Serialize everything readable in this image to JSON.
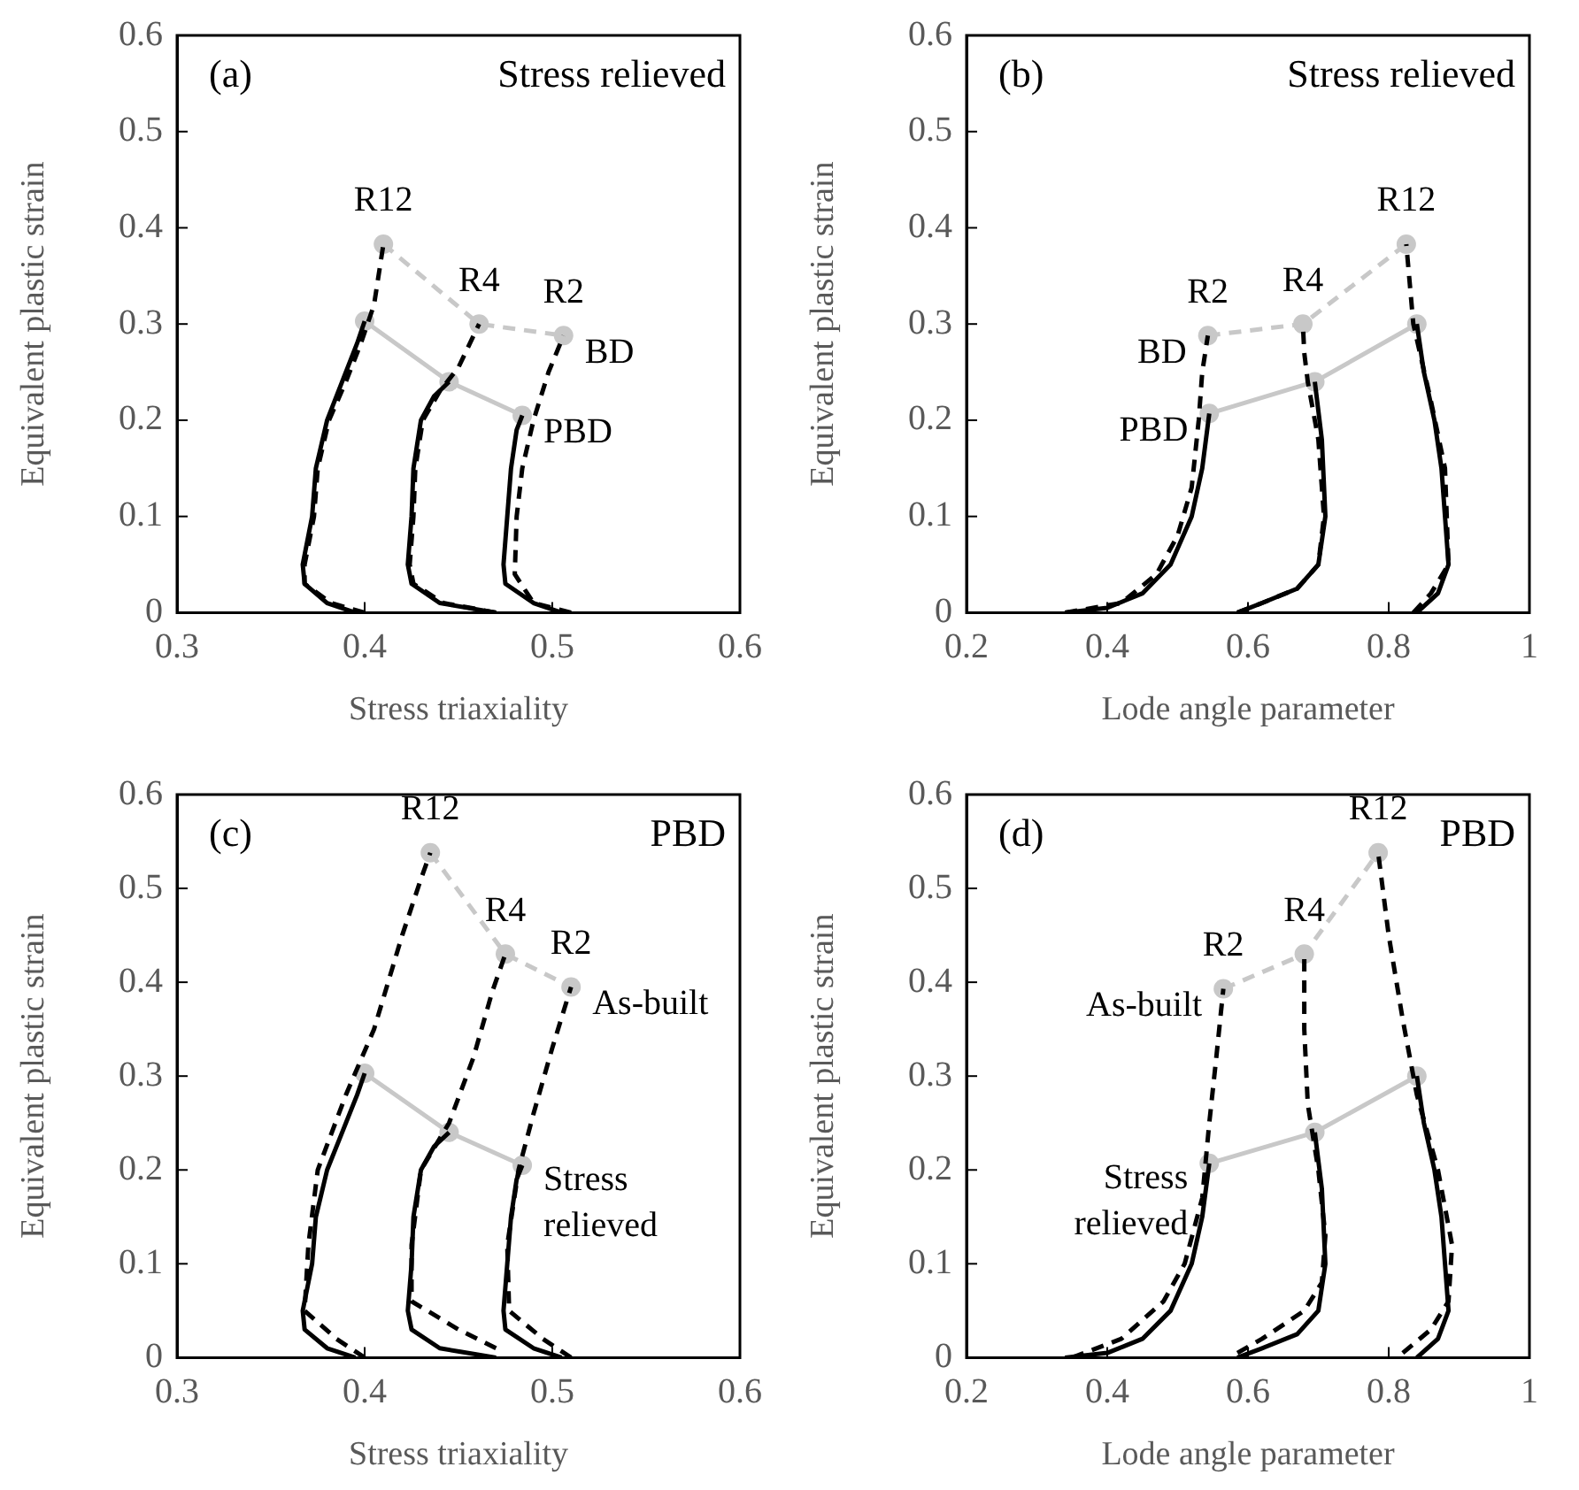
{
  "chart_data": [
    {
      "type": "line",
      "title": "(a)",
      "subtitle": "Stress relieved",
      "xlabel": "Stress triaxiality",
      "ylabel": "Equivalent plastic strain",
      "xlim": [
        0.3,
        0.6
      ],
      "xticks": [
        0.3,
        0.4,
        0.5,
        0.6
      ],
      "ylim": [
        0,
        0.6
      ],
      "yticks": [
        0,
        0.1,
        0.2,
        0.3,
        0.4,
        0.5,
        0.6
      ],
      "grid": false,
      "legend": false,
      "series": [
        {
          "color": "#000000",
          "line_style": "solid",
          "marker": "none",
          "x": [
            0.395,
            0.38,
            0.368,
            0.367,
            0.372,
            0.374,
            0.38,
            0.388,
            0.396,
            0.4
          ],
          "values": [
            0,
            0.01,
            0.03,
            0.05,
            0.1,
            0.15,
            0.2,
            0.24,
            0.28,
            0.303
          ]
        },
        {
          "color": "#000000",
          "line_style": "solid",
          "marker": "none",
          "x": [
            0.47,
            0.44,
            0.425,
            0.423,
            0.425,
            0.426,
            0.43,
            0.437,
            0.445
          ],
          "values": [
            0,
            0.01,
            0.03,
            0.05,
            0.1,
            0.15,
            0.2,
            0.225,
            0.24
          ]
        },
        {
          "color": "#000000",
          "line_style": "solid",
          "marker": "none",
          "x": [
            0.505,
            0.49,
            0.475,
            0.474,
            0.476,
            0.478,
            0.481,
            0.484
          ],
          "values": [
            0,
            0.01,
            0.03,
            0.05,
            0.1,
            0.15,
            0.19,
            0.205
          ]
        },
        {
          "color": "#000000",
          "line_style": "dashed",
          "marker": "none",
          "x": [
            0.4,
            0.382,
            0.368,
            0.368,
            0.373,
            0.375,
            0.381,
            0.39,
            0.398,
            0.405,
            0.41
          ],
          "values": [
            0,
            0.01,
            0.03,
            0.05,
            0.1,
            0.15,
            0.2,
            0.24,
            0.28,
            0.32,
            0.383
          ]
        },
        {
          "color": "#000000",
          "line_style": "dashed",
          "marker": "none",
          "x": [
            0.47,
            0.442,
            0.426,
            0.424,
            0.426,
            0.427,
            0.431,
            0.44,
            0.45,
            0.461
          ],
          "values": [
            0,
            0.01,
            0.03,
            0.05,
            0.1,
            0.15,
            0.2,
            0.23,
            0.255,
            0.3
          ]
        },
        {
          "color": "#000000",
          "line_style": "dashed",
          "marker": "none",
          "x": [
            0.51,
            0.49,
            0.48,
            0.481,
            0.484,
            0.49,
            0.498,
            0.506
          ],
          "values": [
            0,
            0.01,
            0.04,
            0.1,
            0.15,
            0.2,
            0.25,
            0.288
          ]
        },
        {
          "color": "#c8c8c8",
          "line_style": "solid",
          "marker": "circle",
          "x": [
            0.4,
            0.445,
            0.484
          ],
          "values": [
            0.303,
            0.24,
            0.205
          ]
        },
        {
          "color": "#c8c8c8",
          "line_style": "dashed",
          "marker": "circle",
          "x": [
            0.41,
            0.461,
            0.506
          ],
          "values": [
            0.383,
            0.3,
            0.288
          ]
        }
      ],
      "annotations": [
        {
          "text": "R12",
          "x": 0.41,
          "y": 0.383
        },
        {
          "text": "R4",
          "x": 0.461,
          "y": 0.3
        },
        {
          "text": "R2",
          "x": 0.506,
          "y": 0.288
        },
        {
          "text": "BD",
          "x": 0.506,
          "y": 0.288
        },
        {
          "text": "PBD",
          "x": 0.484,
          "y": 0.205
        }
      ]
    },
    {
      "type": "line",
      "title": "(b)",
      "subtitle": "Stress relieved",
      "xlabel": "Lode angle parameter",
      "ylabel": "Equivalent plastic strain",
      "xlim": [
        0.2,
        1
      ],
      "xticks": [
        0.2,
        0.4,
        0.6,
        0.8,
        1
      ],
      "ylim": [
        0,
        0.6
      ],
      "yticks": [
        0,
        0.1,
        0.2,
        0.3,
        0.4,
        0.5,
        0.6
      ],
      "grid": false,
      "legend": false,
      "series": [
        {
          "color": "#000000",
          "line_style": "solid",
          "marker": "none",
          "x": [
            0.34,
            0.4,
            0.45,
            0.49,
            0.52,
            0.535,
            0.545
          ],
          "values": [
            0,
            0.005,
            0.02,
            0.05,
            0.1,
            0.15,
            0.207
          ]
        },
        {
          "color": "#000000",
          "line_style": "solid",
          "marker": "none",
          "x": [
            0.585,
            0.62,
            0.67,
            0.7,
            0.71,
            0.705,
            0.695
          ],
          "values": [
            0,
            0.01,
            0.025,
            0.05,
            0.1,
            0.18,
            0.24
          ]
        },
        {
          "color": "#000000",
          "line_style": "solid",
          "marker": "none",
          "x": [
            0.84,
            0.87,
            0.885,
            0.88,
            0.875,
            0.865,
            0.85,
            0.84
          ],
          "values": [
            0,
            0.02,
            0.05,
            0.1,
            0.15,
            0.2,
            0.25,
            0.3
          ]
        },
        {
          "color": "#000000",
          "line_style": "dashed",
          "marker": "none",
          "x": [
            0.34,
            0.42,
            0.47,
            0.5,
            0.52,
            0.53,
            0.535,
            0.543
          ],
          "values": [
            0,
            0.01,
            0.04,
            0.08,
            0.13,
            0.2,
            0.25,
            0.288
          ]
        },
        {
          "color": "#000000",
          "line_style": "dashed",
          "marker": "none",
          "x": [
            0.585,
            0.62,
            0.67,
            0.7,
            0.708,
            0.7,
            0.685,
            0.68,
            0.678
          ],
          "values": [
            0,
            0.01,
            0.025,
            0.05,
            0.1,
            0.18,
            0.24,
            0.27,
            0.3
          ]
        },
        {
          "color": "#000000",
          "line_style": "dashed",
          "marker": "none",
          "x": [
            0.835,
            0.86,
            0.885,
            0.88,
            0.86,
            0.835,
            0.825
          ],
          "values": [
            0,
            0.02,
            0.05,
            0.15,
            0.22,
            0.3,
            0.383
          ]
        },
        {
          "color": "#c8c8c8",
          "line_style": "solid",
          "marker": "circle",
          "x": [
            0.545,
            0.695,
            0.84
          ],
          "values": [
            0.207,
            0.24,
            0.3
          ]
        },
        {
          "color": "#c8c8c8",
          "line_style": "dashed",
          "marker": "circle",
          "x": [
            0.543,
            0.678,
            0.825
          ],
          "values": [
            0.288,
            0.3,
            0.383
          ]
        }
      ],
      "annotations": [
        {
          "text": "R12",
          "x": 0.825,
          "y": 0.383
        },
        {
          "text": "R4",
          "x": 0.678,
          "y": 0.3
        },
        {
          "text": "R2",
          "x": 0.543,
          "y": 0.288
        },
        {
          "text": "BD",
          "x": 0.543,
          "y": 0.288
        },
        {
          "text": "PBD",
          "x": 0.545,
          "y": 0.207
        }
      ]
    },
    {
      "type": "line",
      "title": "(c)",
      "subtitle": "PBD",
      "xlabel": "Stress triaxiality",
      "ylabel": "Equivalent plastic strain",
      "xlim": [
        0.3,
        0.6
      ],
      "xticks": [
        0.3,
        0.4,
        0.5,
        0.6
      ],
      "ylim": [
        0,
        0.6
      ],
      "yticks": [
        0,
        0.1,
        0.2,
        0.3,
        0.4,
        0.5,
        0.6
      ],
      "grid": false,
      "legend": false,
      "series": [
        {
          "color": "#000000",
          "line_style": "solid",
          "marker": "none",
          "x": [
            0.395,
            0.38,
            0.368,
            0.367,
            0.372,
            0.374,
            0.38,
            0.388,
            0.396,
            0.4
          ],
          "values": [
            0,
            0.01,
            0.03,
            0.05,
            0.1,
            0.15,
            0.2,
            0.24,
            0.28,
            0.303
          ]
        },
        {
          "color": "#000000",
          "line_style": "solid",
          "marker": "none",
          "x": [
            0.47,
            0.44,
            0.425,
            0.423,
            0.425,
            0.426,
            0.43,
            0.437,
            0.445
          ],
          "values": [
            0,
            0.01,
            0.03,
            0.05,
            0.1,
            0.15,
            0.2,
            0.225,
            0.24
          ]
        },
        {
          "color": "#000000",
          "line_style": "solid",
          "marker": "none",
          "x": [
            0.505,
            0.49,
            0.475,
            0.474,
            0.476,
            0.478,
            0.481,
            0.484
          ],
          "values": [
            0,
            0.01,
            0.03,
            0.05,
            0.1,
            0.15,
            0.19,
            0.205
          ]
        },
        {
          "color": "#000000",
          "line_style": "dashed",
          "marker": "none",
          "x": [
            0.4,
            0.385,
            0.368,
            0.37,
            0.375,
            0.39,
            0.405,
            0.42,
            0.43,
            0.435
          ],
          "values": [
            0,
            0.02,
            0.05,
            0.12,
            0.2,
            0.28,
            0.35,
            0.45,
            0.51,
            0.538
          ]
        },
        {
          "color": "#000000",
          "line_style": "dashed",
          "marker": "none",
          "x": [
            0.47,
            0.45,
            0.425,
            0.425,
            0.43,
            0.445,
            0.458,
            0.468,
            0.475
          ],
          "values": [
            0.01,
            0.03,
            0.06,
            0.12,
            0.2,
            0.25,
            0.32,
            0.39,
            0.43
          ]
        },
        {
          "color": "#000000",
          "line_style": "dashed",
          "marker": "none",
          "x": [
            0.51,
            0.495,
            0.477,
            0.476,
            0.482,
            0.49,
            0.5,
            0.51
          ],
          "values": [
            0,
            0.02,
            0.05,
            0.12,
            0.2,
            0.26,
            0.33,
            0.395
          ]
        },
        {
          "color": "#c8c8c8",
          "line_style": "solid",
          "marker": "circle",
          "x": [
            0.4,
            0.445,
            0.484
          ],
          "values": [
            0.303,
            0.24,
            0.205
          ]
        },
        {
          "color": "#c8c8c8",
          "line_style": "dashed",
          "marker": "circle",
          "x": [
            0.435,
            0.475,
            0.51
          ],
          "values": [
            0.538,
            0.43,
            0.395
          ]
        }
      ],
      "annotations": [
        {
          "text": "R12",
          "x": 0.435,
          "y": 0.538
        },
        {
          "text": "R4",
          "x": 0.475,
          "y": 0.43
        },
        {
          "text": "R2",
          "x": 0.51,
          "y": 0.395
        },
        {
          "text": "As-built",
          "x": 0.51,
          "y": 0.395
        },
        {
          "text": "Stress relieved",
          "x": 0.484,
          "y": 0.205
        }
      ]
    },
    {
      "type": "line",
      "title": "(d)",
      "subtitle": "PBD",
      "xlabel": "Lode angle parameter",
      "ylabel": "Equivalent plastic strain",
      "xlim": [
        0.2,
        1
      ],
      "xticks": [
        0.2,
        0.4,
        0.6,
        0.8,
        1
      ],
      "ylim": [
        0,
        0.6
      ],
      "yticks": [
        0,
        0.1,
        0.2,
        0.3,
        0.4,
        0.5,
        0.6
      ],
      "grid": false,
      "legend": false,
      "series": [
        {
          "color": "#000000",
          "line_style": "solid",
          "marker": "none",
          "x": [
            0.34,
            0.4,
            0.45,
            0.49,
            0.52,
            0.535,
            0.545
          ],
          "values": [
            0,
            0.005,
            0.02,
            0.05,
            0.1,
            0.15,
            0.207
          ]
        },
        {
          "color": "#000000",
          "line_style": "solid",
          "marker": "none",
          "x": [
            0.585,
            0.62,
            0.67,
            0.7,
            0.71,
            0.705,
            0.695
          ],
          "values": [
            0,
            0.01,
            0.025,
            0.05,
            0.1,
            0.18,
            0.24
          ]
        },
        {
          "color": "#000000",
          "line_style": "solid",
          "marker": "none",
          "x": [
            0.84,
            0.87,
            0.885,
            0.88,
            0.875,
            0.865,
            0.85,
            0.84
          ],
          "values": [
            0,
            0.02,
            0.05,
            0.1,
            0.15,
            0.2,
            0.25,
            0.3
          ]
        },
        {
          "color": "#000000",
          "line_style": "dashed",
          "marker": "none",
          "x": [
            0.35,
            0.42,
            0.48,
            0.51,
            0.535,
            0.545,
            0.555,
            0.565
          ],
          "values": [
            0,
            0.02,
            0.06,
            0.1,
            0.17,
            0.25,
            0.32,
            0.393
          ]
        },
        {
          "color": "#000000",
          "line_style": "dashed",
          "marker": "none",
          "x": [
            0.585,
            0.62,
            0.68,
            0.705,
            0.71,
            0.7,
            0.685,
            0.68,
            0.68
          ],
          "values": [
            0.005,
            0.02,
            0.05,
            0.08,
            0.13,
            0.2,
            0.27,
            0.35,
            0.43
          ]
        },
        {
          "color": "#000000",
          "line_style": "dashed",
          "marker": "none",
          "x": [
            0.82,
            0.86,
            0.885,
            0.89,
            0.87,
            0.84,
            0.82,
            0.8,
            0.785
          ],
          "values": [
            0.005,
            0.03,
            0.06,
            0.12,
            0.2,
            0.28,
            0.36,
            0.45,
            0.538
          ]
        },
        {
          "color": "#c8c8c8",
          "line_style": "solid",
          "marker": "circle",
          "x": [
            0.545,
            0.695,
            0.84
          ],
          "values": [
            0.207,
            0.24,
            0.3
          ]
        },
        {
          "color": "#c8c8c8",
          "line_style": "dashed",
          "marker": "circle",
          "x": [
            0.565,
            0.68,
            0.785
          ],
          "values": [
            0.393,
            0.43,
            0.538
          ]
        }
      ],
      "annotations": [
        {
          "text": "R12",
          "x": 0.785,
          "y": 0.538
        },
        {
          "text": "R4",
          "x": 0.68,
          "y": 0.43
        },
        {
          "text": "R2",
          "x": 0.565,
          "y": 0.393
        },
        {
          "text": "As-built",
          "x": 0.565,
          "y": 0.393
        },
        {
          "text": "Stress relieved",
          "x": 0.545,
          "y": 0.207
        }
      ]
    }
  ]
}
